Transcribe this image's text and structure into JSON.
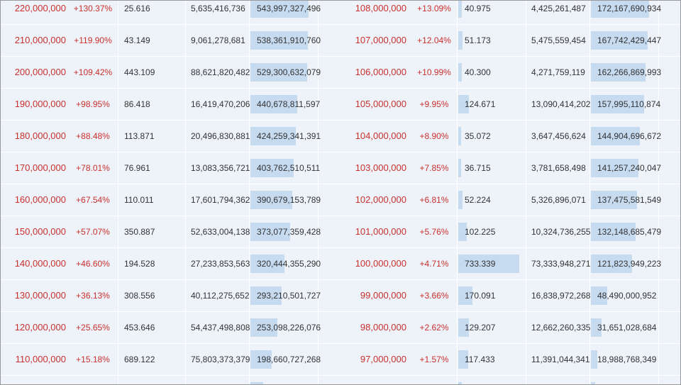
{
  "table": {
    "rows": [
      [
        "220,000,000",
        "+130.37%",
        "25.616",
        "5,635,416,736",
        "543,997,327,496",
        "108,000,000",
        "+13.09%",
        "40.975",
        "4,425,261,487",
        "172,167,690,934"
      ],
      [
        "210,000,000",
        "+119.90%",
        "43.149",
        "9,061,278,681",
        "538,361,910,760",
        "107,000,000",
        "+12.04%",
        "51.173",
        "5,475,559,454",
        "167,742,429,447"
      ],
      [
        "200,000,000",
        "+109.42%",
        "443.109",
        "88,621,820,482",
        "529,300,632,079",
        "106,000,000",
        "+10.99%",
        "40.300",
        "4,271,759,119",
        "162,266,869,993"
      ],
      [
        "190,000,000",
        "+98.95%",
        "86.418",
        "16,419,470,206",
        "440,678,811,597",
        "105,000,000",
        "+9.95%",
        "124.671",
        "13,090,414,202",
        "157,995,110,874"
      ],
      [
        "180,000,000",
        "+88.48%",
        "113.871",
        "20,496,830,881",
        "424,259,341,391",
        "104,000,000",
        "+8.90%",
        "35.072",
        "3,647,456,624",
        "144,904,696,672"
      ],
      [
        "170,000,000",
        "+78.01%",
        "76.961",
        "13,083,356,721",
        "403,762,510,511",
        "103,000,000",
        "+7.85%",
        "36.715",
        "3,781,658,498",
        "141,257,240,047"
      ],
      [
        "160,000,000",
        "+67.54%",
        "110.011",
        "17,601,794,362",
        "390,679,153,789",
        "102,000,000",
        "+6.81%",
        "52.224",
        "5,326,896,071",
        "137,475,581,549"
      ],
      [
        "150,000,000",
        "+57.07%",
        "350.887",
        "52,633,004,138",
        "373,077,359,428",
        "101,000,000",
        "+5.76%",
        "102.225",
        "10,324,736,255",
        "132,148,685,479"
      ],
      [
        "140,000,000",
        "+46.60%",
        "194.528",
        "27,233,853,563",
        "320,444,355,290",
        "100,000,000",
        "+4.71%",
        "733.339",
        "73,333,948,271",
        "121,823,949,223"
      ],
      [
        "130,000,000",
        "+36.13%",
        "308.556",
        "40,112,275,652",
        "293,210,501,727",
        "99,000,000",
        "+3.66%",
        "170.091",
        "16,838,972,268",
        "48,490,000,952"
      ],
      [
        "120,000,000",
        "+25.65%",
        "453.646",
        "54,437,498,808",
        "253,098,226,076",
        "98,000,000",
        "+2.62%",
        "129.207",
        "12,662,260,335",
        "31,651,028,684"
      ],
      [
        "110,000,000",
        "+15.18%",
        "689.122",
        "75,803,373,379",
        "198,660,727,268",
        "97,000,000",
        "+1.57%",
        "117.433",
        "11,391,044,341",
        "18,988,768,349"
      ]
    ]
  }
}
